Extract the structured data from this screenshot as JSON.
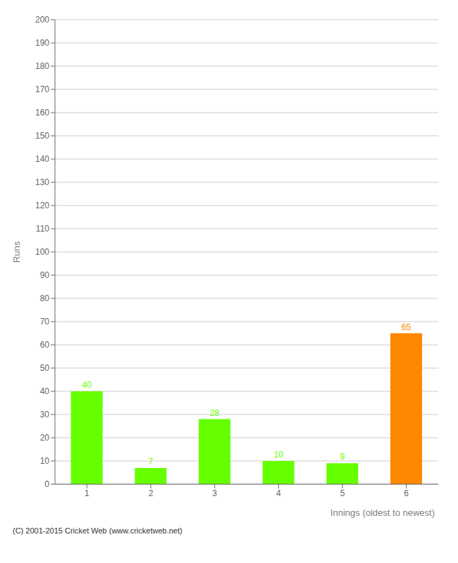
{
  "chart_data": {
    "type": "bar",
    "categories": [
      "1",
      "2",
      "3",
      "4",
      "5",
      "6"
    ],
    "values": [
      40,
      7,
      28,
      10,
      9,
      65
    ],
    "colors": [
      "#66ff00",
      "#66ff00",
      "#66ff00",
      "#66ff00",
      "#66ff00",
      "#ff8800"
    ],
    "xlabel": "Innings (oldest to newest)",
    "ylabel": "Runs",
    "ylim": [
      0,
      200
    ],
    "yticks": [
      0,
      10,
      20,
      30,
      40,
      50,
      60,
      70,
      80,
      90,
      100,
      110,
      120,
      130,
      140,
      150,
      160,
      170,
      180,
      190,
      200
    ],
    "grid": true,
    "data_labels": true,
    "annotations": [
      "(C) 2001-2015 Cricket Web (www.cricketweb.net)"
    ]
  }
}
